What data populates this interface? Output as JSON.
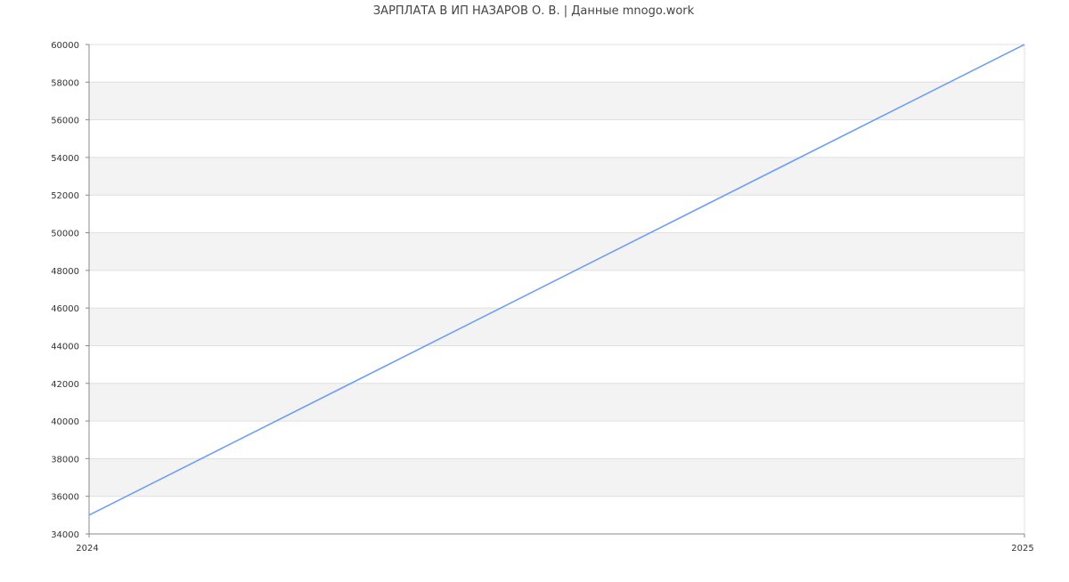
{
  "chart_data": {
    "type": "line",
    "title": "ЗАРПЛАТА В ИП НАЗАРОВ О. В. | Данные mnogo.work",
    "xlabel": "",
    "ylabel": "",
    "x": [
      2024,
      2025
    ],
    "x_tick_labels": [
      "2024",
      "2025"
    ],
    "series": [
      {
        "values": [
          35000,
          60000
        ],
        "color": "#6f9ef7"
      }
    ],
    "ylim": [
      34000,
      60000
    ],
    "y_ticks": [
      34000,
      36000,
      38000,
      40000,
      42000,
      44000,
      46000,
      48000,
      50000,
      52000,
      54000,
      56000,
      58000,
      60000
    ],
    "grid": true,
    "band_color": "#f3f3f3",
    "grid_color": "#e0e0e0",
    "axis_color": "#888888"
  }
}
